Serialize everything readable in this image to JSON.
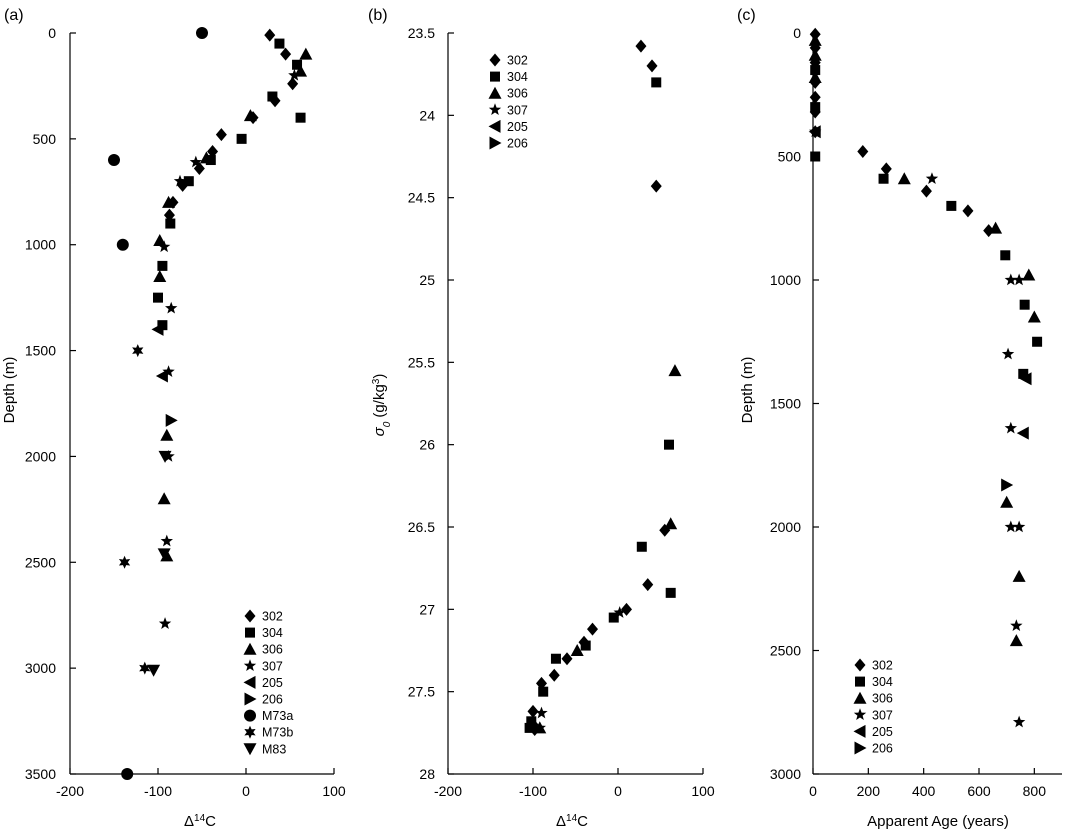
{
  "figure": {
    "panels": [
      {
        "label": "(a)"
      },
      {
        "label": "(b)"
      },
      {
        "label": "(c)"
      }
    ]
  },
  "chart_data": [
    {
      "type": "scatter",
      "panel": "(a)",
      "xlabel": "Δ14C",
      "xlabel_parts": {
        "prefix": "Δ",
        "sup": "14",
        "suffix": "C"
      },
      "ylabel": "Depth (m)",
      "xlim": [
        -200,
        100
      ],
      "ylim": [
        0,
        3500
      ],
      "y_inverted": true,
      "x_ticks": [
        -200,
        -100,
        0,
        100
      ],
      "x_tick_labels": [
        "-200",
        "-100",
        "0",
        "100"
      ],
      "y_ticks": [
        0,
        500,
        1000,
        1500,
        2000,
        2500,
        3000,
        3500
      ],
      "y_tick_labels": [
        "0",
        "500",
        "1000",
        "1500",
        "2000",
        "2500",
        "3000",
        "3500"
      ],
      "legend_position": "bottom-right",
      "series": [
        {
          "name": "302",
          "marker": "diamond",
          "points": [
            [
              27,
              10
            ],
            [
              45,
              100
            ],
            [
              53,
              240
            ],
            [
              33,
              320
            ],
            [
              8,
              400
            ],
            [
              -28,
              480
            ],
            [
              -38,
              560
            ],
            [
              -53,
              640
            ],
            [
              -72,
              720
            ],
            [
              -83,
              800
            ],
            [
              -87,
              860
            ]
          ]
        },
        {
          "name": "304",
          "marker": "square",
          "points": [
            [
              38,
              50
            ],
            [
              58,
              150
            ],
            [
              62,
              400
            ],
            [
              30,
              300
            ],
            [
              -5,
              500
            ],
            [
              -40,
              600
            ],
            [
              -65,
              700
            ],
            [
              -86,
              900
            ],
            [
              -95,
              1100
            ],
            [
              -100,
              1250
            ],
            [
              -95,
              1380
            ]
          ]
        },
        {
          "name": "306",
          "marker": "triangle-up",
          "points": [
            [
              68,
              100
            ],
            [
              62,
              180
            ],
            [
              5,
              390
            ],
            [
              -45,
              590
            ],
            [
              -88,
              800
            ],
            [
              -98,
              980
            ],
            [
              -98,
              1150
            ],
            [
              -90,
              1900
            ],
            [
              -93,
              2200
            ],
            [
              -90,
              2470
            ]
          ]
        },
        {
          "name": "307",
          "marker": "star",
          "points": [
            [
              55,
              200
            ],
            [
              -57,
              610
            ],
            [
              -75,
              700
            ],
            [
              -93,
              1010
            ],
            [
              -85,
              1300
            ],
            [
              -88,
              1600
            ],
            [
              -88,
              2000
            ],
            [
              -90,
              2400
            ],
            [
              -92,
              2790
            ]
          ]
        },
        {
          "name": "205",
          "marker": "triangle-left",
          "points": [
            [
              -100,
              1400
            ],
            [
              -95,
              1620
            ]
          ]
        },
        {
          "name": "206",
          "marker": "triangle-right",
          "points": [
            [
              -85,
              1830
            ]
          ]
        },
        {
          "name": "M73a",
          "marker": "circle",
          "points": [
            [
              -50,
              0
            ],
            [
              -150,
              600
            ],
            [
              -140,
              1000
            ],
            [
              -135,
              3500
            ]
          ]
        },
        {
          "name": "M73b",
          "marker": "asterisk",
          "points": [
            [
              -123,
              1500
            ],
            [
              -138,
              2500
            ],
            [
              -115,
              3000
            ]
          ]
        },
        {
          "name": "M83",
          "marker": "triangle-down",
          "points": [
            [
              -92,
              2000
            ],
            [
              -93,
              2460
            ],
            [
              -105,
              3010
            ]
          ]
        }
      ]
    },
    {
      "type": "scatter",
      "panel": "(b)",
      "xlabel": "Δ14C",
      "xlabel_parts": {
        "prefix": "Δ",
        "sup": "14",
        "suffix": "C"
      },
      "ylabel": "σ0 (g/kg3)",
      "ylabel_parts": {
        "sigma": "σ",
        "sub": "0",
        "units_prefix": " (g/kg",
        "units_sup": "3",
        "units_suffix": ")"
      },
      "xlim": [
        -200,
        100
      ],
      "ylim": [
        23.5,
        28
      ],
      "y_inverted": true,
      "x_ticks": [
        -200,
        -100,
        0,
        100
      ],
      "x_tick_labels": [
        "-200",
        "-100",
        "0",
        "100"
      ],
      "y_ticks": [
        23.5,
        24,
        24.5,
        25,
        25.5,
        26,
        26.5,
        27,
        27.5,
        28
      ],
      "y_tick_labels": [
        "23.5",
        "24",
        "24.5",
        "25",
        "25.5",
        "26",
        "26.5",
        "27",
        "27.5",
        "28"
      ],
      "legend_position": "top-left",
      "series": [
        {
          "name": "302",
          "marker": "diamond",
          "points": [
            [
              27,
              23.58
            ],
            [
              40,
              23.7
            ],
            [
              45,
              24.43
            ],
            [
              55,
              26.52
            ],
            [
              35,
              26.85
            ],
            [
              10,
              27.0
            ],
            [
              -30,
              27.12
            ],
            [
              -40,
              27.2
            ],
            [
              -60,
              27.3
            ],
            [
              -75,
              27.4
            ],
            [
              -90,
              27.45
            ],
            [
              -100,
              27.62
            ],
            [
              -100,
              27.7
            ],
            [
              -98,
              27.73
            ]
          ]
        },
        {
          "name": "304",
          "marker": "square",
          "points": [
            [
              45,
              23.8
            ],
            [
              60,
              26.0
            ],
            [
              28,
              26.62
            ],
            [
              62,
              26.9
            ],
            [
              -5,
              27.05
            ],
            [
              -38,
              27.22
            ],
            [
              -73,
              27.3
            ],
            [
              -88,
              27.5
            ],
            [
              -102,
              27.68
            ],
            [
              -104,
              27.72
            ]
          ]
        },
        {
          "name": "306",
          "marker": "triangle-up",
          "points": [
            [
              67,
              25.55
            ],
            [
              62,
              26.48
            ],
            [
              -48,
              27.25
            ],
            [
              -92,
              27.72
            ]
          ]
        },
        {
          "name": "307",
          "marker": "star",
          "points": [
            [
              2,
              27.02
            ],
            [
              -90,
              27.63
            ],
            [
              -92,
              27.72
            ]
          ]
        },
        {
          "name": "205",
          "marker": "triangle-left",
          "points": []
        },
        {
          "name": "206",
          "marker": "triangle-right",
          "points": []
        }
      ]
    },
    {
      "type": "scatter",
      "panel": "(c)",
      "xlabel": "Apparent Age (years)",
      "ylabel": "Depth (m)",
      "xlim": [
        0,
        900
      ],
      "ylim": [
        0,
        3000
      ],
      "y_inverted": true,
      "x_ticks": [
        0,
        200,
        400,
        600,
        800
      ],
      "x_tick_labels": [
        "0",
        "200",
        "400",
        "600",
        "800"
      ],
      "y_ticks": [
        0,
        500,
        1000,
        1500,
        2000,
        2500,
        3000
      ],
      "y_tick_labels": [
        "0",
        "500",
        "1000",
        "1500",
        "2000",
        "2500",
        "3000"
      ],
      "legend_position": "bottom-left",
      "series": [
        {
          "name": "302",
          "marker": "diamond",
          "points": [
            [
              8,
              5
            ],
            [
              8,
              60
            ],
            [
              8,
              120
            ],
            [
              8,
              200
            ],
            [
              8,
              260
            ],
            [
              8,
              320
            ],
            [
              8,
              400
            ],
            [
              180,
              480
            ],
            [
              265,
              550
            ],
            [
              410,
              640
            ],
            [
              560,
              720
            ],
            [
              635,
              800
            ]
          ]
        },
        {
          "name": "304",
          "marker": "square",
          "points": [
            [
              8,
              150
            ],
            [
              8,
              300
            ],
            [
              8,
              500
            ],
            [
              255,
              590
            ],
            [
              500,
              700
            ],
            [
              695,
              900
            ],
            [
              765,
              1100
            ],
            [
              810,
              1250
            ],
            [
              760,
              1380
            ]
          ]
        },
        {
          "name": "306",
          "marker": "triangle-up",
          "points": [
            [
              8,
              30
            ],
            [
              8,
              90
            ],
            [
              8,
              180
            ],
            [
              330,
              590
            ],
            [
              660,
              790
            ],
            [
              780,
              980
            ],
            [
              800,
              1150
            ],
            [
              700,
              1900
            ],
            [
              745,
              2200
            ],
            [
              735,
              2460
            ]
          ]
        },
        {
          "name": "307",
          "marker": "star",
          "points": [
            [
              8,
              400
            ],
            [
              430,
              590
            ],
            [
              715,
              1000
            ],
            [
              745,
              1000
            ],
            [
              705,
              1300
            ],
            [
              715,
              1600
            ],
            [
              715,
              2000
            ],
            [
              745,
              2000
            ],
            [
              735,
              2400
            ],
            [
              745,
              2790
            ]
          ]
        },
        {
          "name": "205",
          "marker": "triangle-left",
          "points": [
            [
              8,
              400
            ],
            [
              770,
              1400
            ],
            [
              760,
              1620
            ]
          ]
        },
        {
          "name": "206",
          "marker": "triangle-right",
          "points": [
            [
              700,
              1830
            ]
          ]
        }
      ]
    }
  ]
}
